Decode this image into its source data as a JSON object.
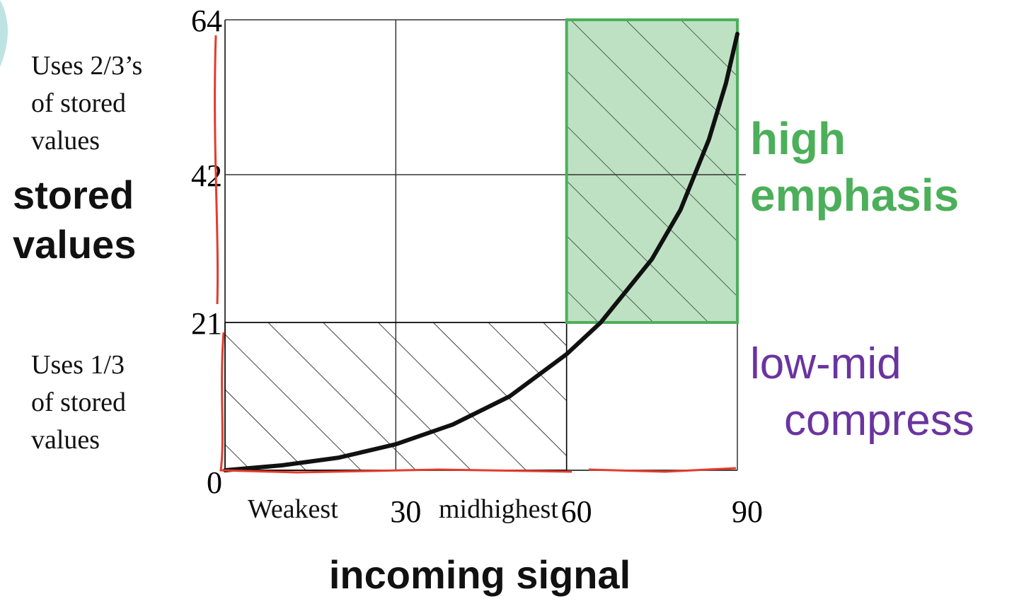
{
  "chart_data": {
    "type": "line",
    "x": [
      0,
      10,
      20,
      30,
      40,
      50,
      60,
      66,
      70,
      75,
      80,
      85,
      88,
      90
    ],
    "values": [
      0,
      0.7,
      1.8,
      3.7,
      6.5,
      10.5,
      16.5,
      21,
      25,
      30,
      37,
      47,
      55,
      62
    ],
    "color": "#111111",
    "xlim": [
      0,
      90
    ],
    "xticks": [
      30,
      60,
      90
    ],
    "ylim": [
      0,
      64
    ],
    "yticks": [
      0,
      21,
      42,
      64
    ],
    "grid": true,
    "xlabel": "incoming signal",
    "ylabel": [
      "stored",
      "values"
    ],
    "regions": [
      {
        "x": [
          0,
          60
        ],
        "y": [
          0,
          21
        ],
        "fill": "none",
        "border": "#000000",
        "hatch": "#000000"
      },
      {
        "x": [
          60,
          90
        ],
        "y": [
          21,
          64
        ],
        "fill": "#bfe1c3",
        "border": "#4caf5a",
        "hatch": "#1f3a22"
      }
    ],
    "annotations": {
      "upper_note": [
        "Uses 2/3’s",
        "of stored",
        "values"
      ],
      "lower_note": [
        "Uses 1/3",
        "of stored",
        "values"
      ],
      "high": [
        "high",
        "emphasis"
      ],
      "low": [
        "low-mid",
        "compress"
      ],
      "weakest": "Weakest",
      "midhighest": "midhighest"
    }
  }
}
